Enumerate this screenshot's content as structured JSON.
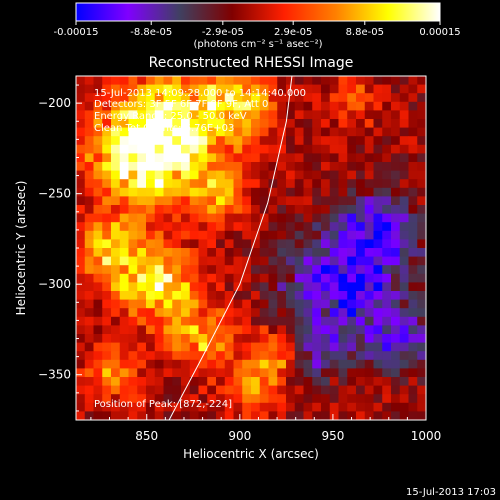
{
  "chart_data": {
    "type": "heatmap",
    "title": "Reconstructed RHESSI Image",
    "xlabel": "Heliocentric X (arcsec)",
    "ylabel": "Heliocentric Y (arcsec)",
    "xlim": [
      812,
      1000
    ],
    "ylim": [
      -375,
      -185
    ],
    "x_ticks": [
      850,
      900,
      950,
      1000
    ],
    "y_ticks": [
      -200,
      -250,
      -300,
      -350
    ],
    "colorbar": {
      "range": [
        -0.00015,
        0.00015
      ],
      "tick_values": [
        -0.00015,
        -8.8e-05,
        -2.9e-05,
        2.9e-05,
        8.8e-05,
        0.00015
      ],
      "tick_labels": [
        "-0.00015",
        "-8.8e-05",
        "-2.9e-05",
        "2.9e-05",
        "8.8e-05",
        "0.00015"
      ],
      "unit_label": "(photons cm⁻² s⁻¹ asec⁻²)",
      "colors": [
        "#0000ff",
        "#8000ff",
        "#404060",
        "#800000",
        "#ff2000",
        "#ff8000",
        "#ffff00",
        "#ffffff"
      ]
    },
    "annotations": [
      "15-Jul-2013 14:09:28.000 to 14:14:40.000",
      "Detectors: 3F 5F 6F 7F 8F 9F, Att 0",
      "Energy Range: 25.0 - 50.0 keV",
      "Clean    Tot Counts: 6.76E+03"
    ],
    "peak_label": "Position of Peak: [872,-224]",
    "peak": [
      872,
      -224
    ],
    "limb_arc": {
      "description": "solar limb",
      "points": [
        [
          862,
          -375
        ],
        [
          880,
          -340
        ],
        [
          900,
          -300
        ],
        [
          915,
          -255
        ],
        [
          925,
          -210
        ],
        [
          928,
          -185
        ]
      ]
    },
    "cells": {
      "x_count": 40,
      "y_count": 40,
      "hot_regions": [
        {
          "x": 862,
          "y": -215,
          "r": 32,
          "v": 1.0
        },
        {
          "x": 845,
          "y": -230,
          "r": 25,
          "v": 0.8
        },
        {
          "x": 900,
          "y": -200,
          "r": 20,
          "v": 0.7
        },
        {
          "x": 855,
          "y": -300,
          "r": 22,
          "v": 0.85
        },
        {
          "x": 830,
          "y": -280,
          "r": 18,
          "v": 0.7
        },
        {
          "x": 880,
          "y": -330,
          "r": 18,
          "v": 0.6
        },
        {
          "x": 920,
          "y": -340,
          "r": 16,
          "v": 0.6
        },
        {
          "x": 830,
          "y": -350,
          "r": 16,
          "v": 0.5
        },
        {
          "x": 890,
          "y": -250,
          "r": 15,
          "v": 0.55
        },
        {
          "x": 960,
          "y": -200,
          "r": 14,
          "v": 0.4
        },
        {
          "x": 905,
          "y": -360,
          "r": 14,
          "v": 0.5
        }
      ],
      "cold_regions": [
        {
          "x": 955,
          "y": -300,
          "r": 30,
          "v": -0.9
        },
        {
          "x": 975,
          "y": -270,
          "r": 20,
          "v": -0.7
        },
        {
          "x": 985,
          "y": -330,
          "r": 18,
          "v": -0.6
        },
        {
          "x": 940,
          "y": -340,
          "r": 15,
          "v": -0.5
        }
      ]
    }
  },
  "footer": {
    "timestamp": "15-Jul-2013 17:03"
  }
}
